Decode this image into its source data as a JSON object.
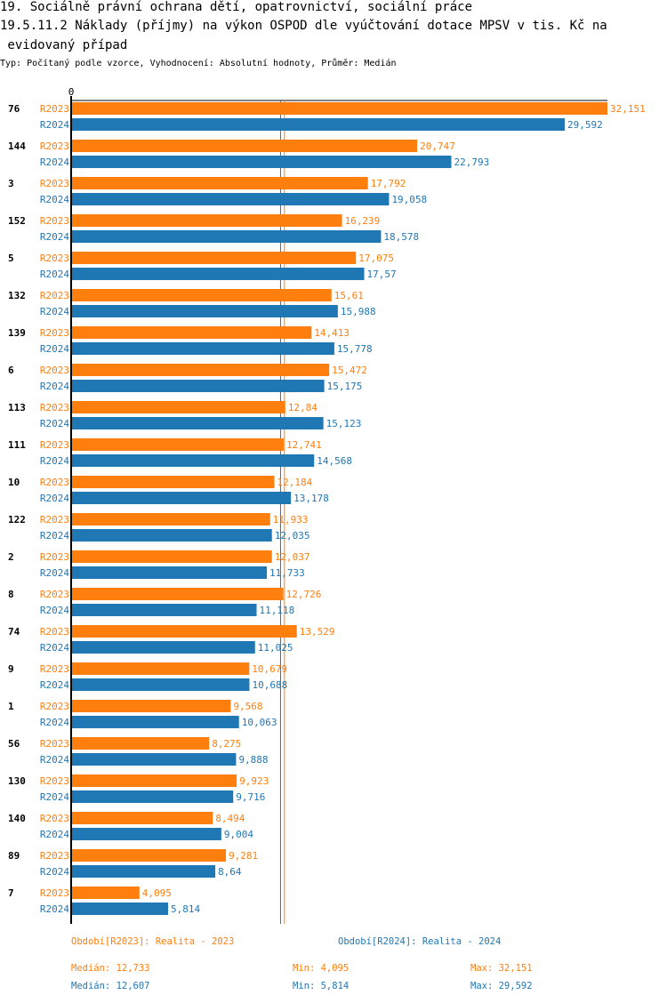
{
  "title_line1": "19. Sociálně právní ochrana dětí, opatrovnictví, sociální práce",
  "title_line2": "19.5.11.2 Náklady (příjmy) na výkon OSPOD dle vyúčtování dotace MPSV v tis. Kč na",
  "title_line3": " evidovaný případ",
  "subtitle": "Typ: Počítaný podle vzorce, Vyhodnocení: Absolutní hodnoty, Průměr: Medián",
  "colors": {
    "R2023": "#ff7f0e",
    "R2024": "#1f77b4"
  },
  "chart_data": {
    "type": "bar",
    "orientation": "horizontal",
    "x_tick_label": "0",
    "xlim": [
      0,
      32151
    ],
    "series_names": [
      "R2023",
      "R2024"
    ],
    "categories": [
      "76",
      "144",
      "3",
      "152",
      "5",
      "132",
      "139",
      "6",
      "113",
      "111",
      "10",
      "122",
      "2",
      "8",
      "74",
      "9",
      "1",
      "56",
      "130",
      "140",
      "89",
      "7"
    ],
    "series": [
      {
        "name": "R2023",
        "values": [
          32151,
          20747,
          17792,
          16239,
          17075,
          15610,
          14413,
          15472,
          12840,
          12741,
          12184,
          11933,
          12037,
          12726,
          13529,
          10679,
          9568,
          8275,
          9923,
          8494,
          9281,
          4095
        ],
        "labels": [
          "32,151",
          "20,747",
          "17,792",
          "16,239",
          "17,075",
          "15,61",
          "14,413",
          "15,472",
          "12,84",
          "12,741",
          "12,184",
          "11,933",
          "12,037",
          "12,726",
          "13,529",
          "10,679",
          "9,568",
          "8,275",
          "9,923",
          "8,494",
          "9,281",
          "4,095"
        ]
      },
      {
        "name": "R2024",
        "values": [
          29592,
          22793,
          19058,
          18578,
          17570,
          15988,
          15778,
          15175,
          15123,
          14568,
          13178,
          12035,
          11733,
          11118,
          11025,
          10688,
          10063,
          9888,
          9716,
          9004,
          8640,
          5814
        ],
        "labels": [
          "29,592",
          "22,793",
          "19,058",
          "18,578",
          "17,57",
          "15,988",
          "15,778",
          "15,175",
          "15,123",
          "14,568",
          "13,178",
          "12,035",
          "11,733",
          "11,118",
          "11,025",
          "10,688",
          "10,063",
          "9,888",
          "9,716",
          "9,004",
          "8,64",
          "5,814"
        ]
      }
    ],
    "median_lines": {
      "R2023": 12733,
      "R2024": 12607
    }
  },
  "legend": {
    "r2023": "Období[R2023]: Realita - 2023",
    "r2024": "Období[R2024]: Realita - 2024"
  },
  "stats": {
    "r2023": {
      "median": "Medián: 12,733",
      "min": "Min: 4,095",
      "max": "Max: 32,151"
    },
    "r2024": {
      "median": "Medián: 12,607",
      "min": "Min: 5,814",
      "max": "Max: 29,592"
    }
  }
}
